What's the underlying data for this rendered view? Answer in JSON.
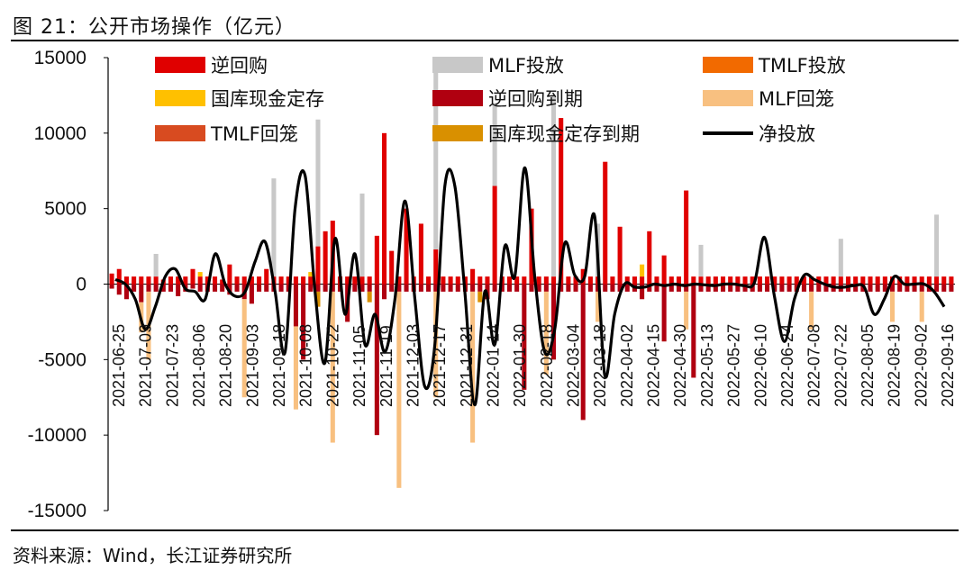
{
  "figure": {
    "title": "图 21：公开市场操作（亿元）",
    "source": "资料来源：Wind，长江证券研究所"
  },
  "chart_data": {
    "type": "bar",
    "title": "公开市场操作（亿元）",
    "ylim": [
      -15000,
      15000
    ],
    "yticks": [
      15000,
      10000,
      5000,
      0,
      -5000,
      -10000,
      -15000
    ],
    "ytick_labels": [
      "15000",
      "10000",
      "5000",
      "0",
      "-5000",
      "-10000",
      "-15000"
    ],
    "xtick_labels": [
      "2021-06-25",
      "2021-07-09",
      "2021-07-23",
      "2021-08-06",
      "2021-08-20",
      "2021-09-03",
      "2021-09-18",
      "2021-10-08",
      "2021-10-22",
      "2021-11-05",
      "2021-11-19",
      "2021-12-03",
      "2021-12-17",
      "2021-12-31",
      "2022-01-14",
      "2022-01-30",
      "2022-02-18",
      "2022-03-04",
      "2022-03-18",
      "2022-04-02",
      "2022-04-15",
      "2022-04-30",
      "2022-05-13",
      "2022-05-27",
      "2022-06-10",
      "2022-06-24",
      "2022-07-08",
      "2022-07-22",
      "2022-08-05",
      "2022-08-19",
      "2022-09-02",
      "2022-09-16"
    ],
    "legend": [
      {
        "name": "逆回购",
        "color": "#e00000",
        "kind": "bar"
      },
      {
        "name": "MLF投放",
        "color": "#c8c8c8",
        "kind": "bar"
      },
      {
        "name": "TMLF投放",
        "color": "#f26a00",
        "kind": "bar"
      },
      {
        "name": "国库现金定存",
        "color": "#ffc000",
        "kind": "bar"
      },
      {
        "name": "逆回购到期",
        "color": "#b00010",
        "kind": "bar"
      },
      {
        "name": "MLF回笼",
        "color": "#f8c080",
        "kind": "bar"
      },
      {
        "name": "TMLF回笼",
        "color": "#d84b20",
        "kind": "bar"
      },
      {
        "name": "国库现金定存到期",
        "color": "#d99000",
        "kind": "bar"
      },
      {
        "name": "净投放",
        "color": "#000000",
        "kind": "line"
      }
    ],
    "series": [
      {
        "name": "逆回购",
        "values": [
          700,
          1000,
          500,
          500,
          500,
          500,
          500,
          300,
          500,
          500,
          500,
          1000,
          500,
          500,
          500,
          300,
          1300,
          500,
          500,
          500,
          500,
          1000,
          500,
          500,
          500,
          500,
          500,
          500,
          2500,
          3500,
          4200,
          500,
          500,
          500,
          500,
          500,
          3200,
          10000,
          2200,
          500,
          5000,
          500,
          4000,
          500,
          2300,
          500,
          500,
          500,
          500,
          1000,
          500,
          500,
          6500,
          500,
          500,
          500,
          500,
          5000,
          500,
          500,
          500,
          11000,
          500,
          500,
          1000,
          500,
          500,
          8100,
          500,
          3800,
          500,
          500,
          500,
          3500,
          500,
          1900,
          500,
          500,
          6200,
          500,
          500,
          500,
          500,
          500,
          500,
          500,
          500,
          500,
          500,
          500,
          500,
          500,
          500,
          500,
          500,
          500,
          500,
          500,
          500,
          500,
          500,
          500,
          500,
          500,
          500,
          500,
          500,
          500,
          500,
          500,
          500,
          500,
          500,
          500,
          500
        ]
      },
      {
        "name": "MLF投放",
        "values": [
          0,
          0,
          0,
          0,
          0,
          0,
          1500,
          0,
          0,
          0,
          0,
          0,
          0,
          0,
          0,
          0,
          0,
          0,
          0,
          0,
          0,
          0,
          6500,
          0,
          0,
          0,
          0,
          0,
          8400,
          0,
          0,
          0,
          0,
          0,
          5500,
          0,
          0,
          0,
          0,
          0,
          0,
          0,
          0,
          0,
          12100,
          0,
          0,
          0,
          0,
          0,
          0,
          0,
          5500,
          0,
          0,
          0,
          0,
          0,
          0,
          0,
          12000,
          0,
          0,
          0,
          0,
          0,
          3500,
          0,
          0,
          0,
          0,
          0,
          0,
          0,
          0,
          0,
          0,
          0,
          0,
          0,
          2100,
          0,
          0,
          0,
          0,
          0,
          0,
          0,
          0,
          0,
          0,
          0,
          0,
          0,
          0,
          0,
          0,
          0,
          0,
          2500,
          0,
          0,
          0,
          0,
          0,
          0,
          0,
          0,
          0,
          0,
          0,
          0,
          4100,
          0,
          0,
          0,
          0,
          0,
          4100
        ]
      },
      {
        "name": "TMLF投放",
        "values": [
          0,
          0,
          0,
          0,
          0,
          0,
          0,
          0,
          0,
          0,
          0,
          0,
          0,
          0,
          0,
          0,
          0,
          0,
          0,
          0,
          0,
          0,
          0,
          0,
          0,
          0,
          0,
          0,
          0,
          0,
          0,
          0,
          0,
          0,
          0,
          0,
          0,
          0,
          0,
          0,
          0,
          0,
          0,
          0,
          0,
          0,
          0,
          0,
          0,
          0,
          0,
          0,
          0,
          0,
          0,
          0,
          0,
          0,
          0,
          0,
          0,
          0,
          0,
          0,
          0,
          0,
          0,
          0,
          0,
          0,
          0,
          0,
          0,
          0,
          0,
          0,
          0,
          0,
          0,
          0,
          0,
          0,
          0,
          0,
          0,
          0,
          0,
          0,
          0,
          0,
          0,
          0,
          0,
          0,
          0,
          0,
          0,
          0,
          0,
          0,
          0,
          0,
          0,
          0,
          0,
          0,
          0,
          0,
          0,
          0,
          0,
          0,
          0,
          0,
          0,
          0
        ]
      },
      {
        "name": "国库现金定存",
        "values": [
          0,
          0,
          0,
          0,
          0,
          0,
          0,
          0,
          0,
          0,
          0,
          0,
          300,
          0,
          0,
          0,
          0,
          0,
          0,
          0,
          0,
          0,
          0,
          0,
          0,
          0,
          0,
          300,
          0,
          0,
          0,
          0,
          0,
          0,
          0,
          0,
          0,
          0,
          0,
          0,
          0,
          0,
          0,
          0,
          0,
          0,
          0,
          0,
          0,
          0,
          0,
          0,
          0,
          0,
          0,
          0,
          0,
          0,
          0,
          0,
          0,
          0,
          0,
          0,
          0,
          0,
          0,
          0,
          0,
          0,
          0,
          0,
          800,
          0,
          0,
          0,
          0,
          0,
          0,
          0,
          0,
          0,
          0,
          0,
          0,
          0,
          0,
          0,
          0,
          0,
          0,
          0,
          0,
          0,
          0,
          0,
          0,
          0,
          0,
          0,
          0,
          0,
          0,
          0,
          0,
          0,
          0,
          0,
          0,
          0,
          0,
          0,
          0,
          0,
          0,
          0
        ]
      },
      {
        "name": "逆回购到期",
        "values": [
          -300,
          -700,
          -1000,
          -500,
          -1200,
          -500,
          -500,
          -500,
          -500,
          -800,
          -500,
          -300,
          -500,
          -500,
          -500,
          -500,
          -700,
          -500,
          -1000,
          -1300,
          -500,
          -500,
          -500,
          -500,
          -500,
          -2800,
          -5000,
          -500,
          -500,
          -500,
          -500,
          -500,
          -2500,
          -500,
          -500,
          -500,
          -10000,
          -1000,
          -500,
          -500,
          -500,
          -500,
          -500,
          -500,
          -500,
          -500,
          -500,
          -500,
          -500,
          -500,
          -500,
          -1000,
          -500,
          -500,
          -500,
          -500,
          -7000,
          -500,
          -500,
          -500,
          -5000,
          -500,
          -500,
          -500,
          -9000,
          -500,
          -500,
          -500,
          -500,
          -500,
          -500,
          -500,
          -1000,
          -500,
          -500,
          -3800,
          -500,
          -500,
          -500,
          -6200,
          -500,
          -500,
          -500,
          -500,
          -500,
          -500,
          -500,
          -500,
          -500,
          -500,
          -500,
          -500,
          -500,
          -500,
          -500,
          -500,
          -500,
          -500,
          -500,
          -500,
          -500,
          -500,
          -500,
          -500,
          -500,
          -500,
          -500,
          -500,
          -500,
          -500,
          -500,
          -500,
          -500,
          -500,
          -500,
          -500,
          -500,
          -500
        ]
      },
      {
        "name": "MLF回笼",
        "values": [
          0,
          0,
          0,
          0,
          -2000,
          -4500,
          0,
          0,
          0,
          0,
          0,
          0,
          0,
          0,
          0,
          0,
          0,
          0,
          -6500,
          0,
          0,
          0,
          0,
          0,
          0,
          -5500,
          0,
          0,
          0,
          0,
          -10000,
          0,
          0,
          0,
          0,
          0,
          0,
          0,
          0,
          -13000,
          0,
          0,
          0,
          0,
          -7000,
          0,
          0,
          0,
          0,
          -10000,
          0,
          0,
          0,
          0,
          0,
          0,
          0,
          0,
          0,
          -5500,
          0,
          0,
          0,
          0,
          0,
          0,
          -2000,
          0,
          0,
          0,
          0,
          0,
          0,
          0,
          0,
          0,
          0,
          0,
          -2500,
          0,
          0,
          0,
          0,
          0,
          0,
          0,
          0,
          0,
          0,
          0,
          0,
          0,
          0,
          0,
          0,
          -2500,
          0,
          0,
          0,
          0,
          0,
          0,
          0,
          0,
          0,
          0,
          -2000,
          0,
          0,
          0,
          -2000,
          0,
          0,
          0,
          0,
          -2500
        ]
      },
      {
        "name": "TMLF回笼",
        "values": [
          0,
          0,
          0,
          0,
          0,
          0,
          0,
          0,
          0,
          0,
          0,
          0,
          0,
          0,
          0,
          0,
          0,
          0,
          0,
          0,
          0,
          0,
          0,
          0,
          0,
          0,
          0,
          0,
          0,
          0,
          0,
          0,
          0,
          0,
          0,
          0,
          0,
          0,
          0,
          0,
          0,
          0,
          0,
          0,
          0,
          0,
          0,
          0,
          0,
          0,
          0,
          0,
          0,
          0,
          0,
          0,
          0,
          0,
          0,
          0,
          0,
          0,
          0,
          0,
          0,
          0,
          0,
          0,
          0,
          0,
          0,
          0,
          0,
          0,
          0,
          0,
          0,
          0,
          0,
          0,
          0,
          0,
          0,
          0,
          0,
          0,
          0,
          0,
          0,
          0,
          0,
          0,
          0,
          0,
          0,
          0,
          0,
          0,
          0,
          0,
          0,
          0,
          0,
          0,
          0,
          0,
          0,
          0,
          0,
          0,
          0,
          0,
          0,
          0,
          0,
          0
        ]
      },
      {
        "name": "国库现金定存到期",
        "values": [
          0,
          0,
          0,
          0,
          0,
          0,
          0,
          0,
          0,
          0,
          0,
          0,
          0,
          0,
          0,
          0,
          0,
          0,
          0,
          0,
          0,
          0,
          0,
          0,
          0,
          0,
          0,
          0,
          -1000,
          0,
          0,
          0,
          0,
          0,
          0,
          -700,
          0,
          0,
          0,
          0,
          0,
          0,
          0,
          0,
          0,
          0,
          0,
          0,
          0,
          0,
          -700,
          0,
          0,
          0,
          0,
          0,
          0,
          0,
          0,
          0,
          0,
          0,
          0,
          0,
          0,
          0,
          0,
          0,
          0,
          0,
          0,
          0,
          0,
          0,
          0,
          0,
          0,
          0,
          0,
          0,
          0,
          0,
          0,
          0,
          0,
          0,
          0,
          0,
          0,
          0,
          0,
          0,
          0,
          0,
          0,
          0,
          0,
          0,
          0,
          0,
          0,
          0,
          0,
          0,
          0,
          0,
          0,
          0,
          0,
          0,
          0,
          0,
          0,
          0,
          0,
          0
        ]
      },
      {
        "name": "净投放",
        "kind": "line",
        "values": [
          300,
          0,
          -1000,
          -3000,
          -1500,
          500,
          1000,
          -300,
          -500,
          -1000,
          2000,
          0,
          -800,
          -500,
          1500,
          2800,
          -500,
          -4500,
          5000,
          7200,
          -500,
          -5200,
          3000,
          -2000,
          2000,
          -4000,
          -2000,
          -4500,
          -1000,
          5500,
          -1000,
          -6800,
          -4000,
          6500,
          6500,
          -500,
          -8000,
          -500,
          -4000,
          2500,
          500,
          7700,
          500,
          -4500,
          -3000,
          2700,
          600,
          500,
          4500,
          -6000,
          -2000,
          0,
          -200,
          -200,
          0,
          -100,
          0,
          -100,
          0,
          -50,
          -100,
          0,
          0,
          -100,
          100,
          3100,
          -800,
          -3800,
          -1000,
          600,
          300,
          0,
          -200,
          -200,
          -100,
          -200,
          -2000,
          -1000,
          500,
          0,
          0,
          0,
          -500,
          -1500
        ]
      }
    ]
  }
}
